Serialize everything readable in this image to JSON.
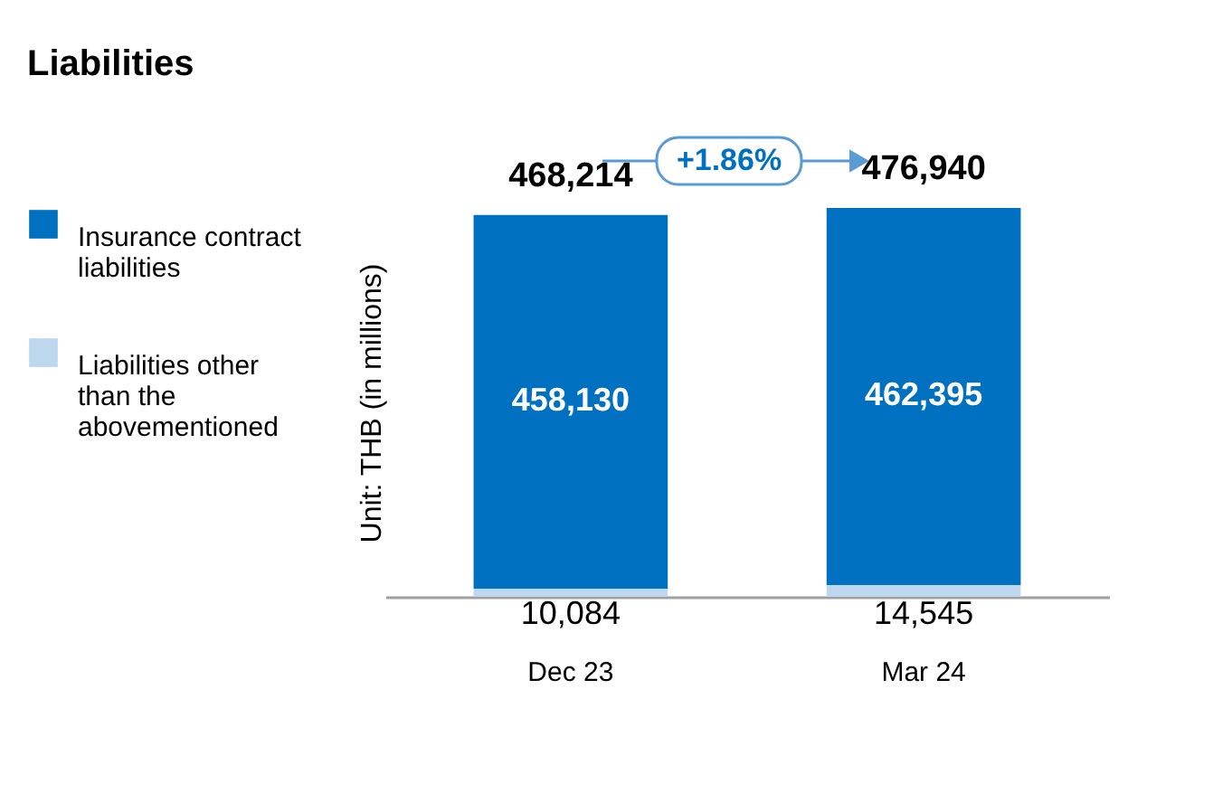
{
  "chart_data": {
    "type": "bar",
    "title": "Liabilities",
    "ylabel": "Unit: THB (in millions)",
    "categories": [
      "Dec 23",
      "Mar 24"
    ],
    "stacked": true,
    "series": [
      {
        "name": "Liabilities other than the abovementioned",
        "color": "#bdd7ee",
        "values": [
          10084,
          14545
        ],
        "value_labels": [
          "10,084",
          "14,545"
        ]
      },
      {
        "name": "Insurance contract liabilities",
        "color": "#0070c0",
        "values": [
          458130,
          462395
        ],
        "value_labels": [
          "458,130",
          "462,395"
        ]
      }
    ],
    "totals": [
      "468,214",
      "476,940"
    ],
    "annotations": [
      "+1.86%"
    ],
    "legend": "left",
    "grid": false
  }
}
